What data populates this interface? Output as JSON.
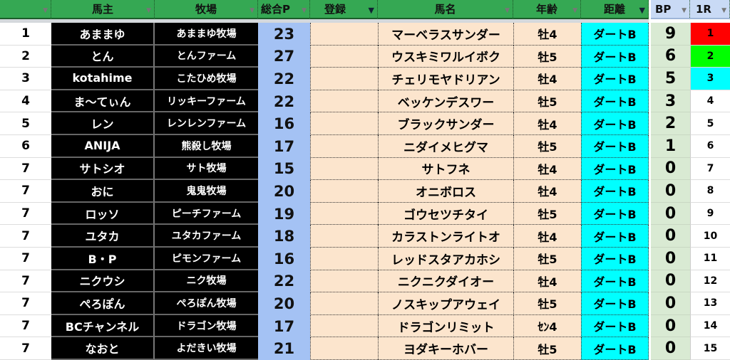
{
  "headers": {
    "rank": "",
    "owner": "馬主",
    "farm": "牧場",
    "points": "総合P",
    "register": "登録",
    "horse": "馬名",
    "age": "年齢",
    "distance": "距離",
    "bp": "BP",
    "r1": "1R"
  },
  "colors": {
    "header": "#35a853",
    "points": "#a4c2f4",
    "peach": "#fce5cd",
    "cyan": "#00ffff",
    "bp": "#d9ead3",
    "r1_first": "#ff0000",
    "r1_second": "#00ff00",
    "r1_third": "#00ffff"
  },
  "rows": [
    {
      "rank": "1",
      "owner": "あままゆ",
      "farm": "あままゆ牧場",
      "points": "23",
      "horse": "マーベラスサンダー",
      "age": "牡4",
      "distance": "ダートB",
      "bp": "9",
      "r1": "1",
      "r1_color": "#ff0000"
    },
    {
      "rank": "2",
      "owner": "とん",
      "farm": "とんファーム",
      "points": "27",
      "horse": "ウスキミワルイボク",
      "age": "牡5",
      "distance": "ダートB",
      "bp": "6",
      "r1": "2",
      "r1_color": "#00ff00"
    },
    {
      "rank": "3",
      "owner": "kotahime",
      "farm": "こたひめ牧場",
      "points": "22",
      "horse": "チェリモヤドリアン",
      "age": "牡4",
      "distance": "ダートB",
      "bp": "5",
      "r1": "3",
      "r1_color": "#00ffff"
    },
    {
      "rank": "4",
      "owner": "ま〜てぃん",
      "farm": "リッキーファーム",
      "points": "22",
      "horse": "ベッケンデスワー",
      "age": "牡5",
      "distance": "ダートB",
      "bp": "3",
      "r1": "4"
    },
    {
      "rank": "5",
      "owner": "レン",
      "farm": "レンレンファーム",
      "points": "16",
      "horse": "ブラックサンダー",
      "age": "牡4",
      "distance": "ダートB",
      "bp": "2",
      "r1": "5"
    },
    {
      "rank": "6",
      "owner": "ANIJA",
      "farm": "熊殺し牧場",
      "points": "17",
      "horse": "ニダイメヒグマ",
      "age": "牡5",
      "distance": "ダートB",
      "bp": "1",
      "r1": "6"
    },
    {
      "rank": "7",
      "owner": "サトシオ",
      "farm": "サト牧場",
      "points": "15",
      "horse": "サトフネ",
      "age": "牡4",
      "distance": "ダートB",
      "bp": "0",
      "r1": "7"
    },
    {
      "rank": "7",
      "owner": "おに",
      "farm": "鬼鬼牧場",
      "points": "20",
      "horse": "オニボロス",
      "age": "牡4",
      "distance": "ダートB",
      "bp": "0",
      "r1": "8"
    },
    {
      "rank": "7",
      "owner": "ロッソ",
      "farm": "ピーチファーム",
      "points": "19",
      "horse": "ゴウセツチタイ",
      "age": "牡5",
      "distance": "ダートB",
      "bp": "0",
      "r1": "9"
    },
    {
      "rank": "7",
      "owner": "ユタカ",
      "farm": "ユタカファーム",
      "points": "18",
      "horse": "カラストンライトオ",
      "age": "牡4",
      "distance": "ダートB",
      "bp": "0",
      "r1": "10"
    },
    {
      "rank": "7",
      "owner": "B・P",
      "farm": "ピモンファーム",
      "points": "16",
      "horse": "レッドスタアカホシ",
      "age": "牡5",
      "distance": "ダートB",
      "bp": "0",
      "r1": "11"
    },
    {
      "rank": "7",
      "owner": "ニクウシ",
      "farm": "ニク牧場",
      "points": "22",
      "horse": "ニクニクダイオー",
      "age": "牡4",
      "distance": "ダートB",
      "bp": "0",
      "r1": "12"
    },
    {
      "rank": "7",
      "owner": "ぺろぽん",
      "farm": "ぺろぽん牧場",
      "points": "20",
      "horse": "ノスキップアウェイ",
      "age": "牡5",
      "distance": "ダートB",
      "bp": "0",
      "r1": "13"
    },
    {
      "rank": "7",
      "owner": "BCチャンネル",
      "farm": "ドラゴン牧場",
      "points": "17",
      "horse": "ドラゴンリミット",
      "age": "ｾﾝ4",
      "distance": "ダートB",
      "bp": "0",
      "r1": "14"
    },
    {
      "rank": "7",
      "owner": "なおと",
      "farm": "よだきい牧場",
      "points": "21",
      "horse": "ヨダキーホバー",
      "age": "牡5",
      "distance": "ダートB",
      "bp": "0",
      "r1": "15"
    }
  ]
}
